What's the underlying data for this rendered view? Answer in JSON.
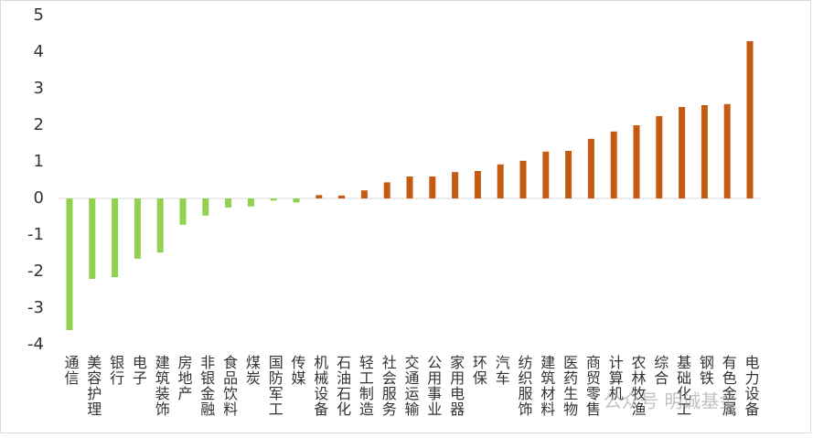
{
  "chart_data": {
    "type": "bar",
    "categories": [
      "通信",
      "美容护理",
      "银行",
      "电子",
      "建筑装饰",
      "房地产",
      "非银金融",
      "食品饮料",
      "煤炭",
      "国防军工",
      "传媒",
      "机械设备",
      "石油石化",
      "轻工制造",
      "社会服务",
      "交通运输",
      "公用事业",
      "家用电器",
      "环保",
      "汽车",
      "纺织服饰",
      "建筑材料",
      "医药生物",
      "商贸零售",
      "计算机",
      "农林牧渔",
      "综合",
      "基础化工",
      "钢铁",
      "有色金属",
      "电力设备"
    ],
    "values": [
      -3.6,
      -2.2,
      -2.15,
      -1.65,
      -1.48,
      -0.72,
      -0.47,
      -0.25,
      -0.22,
      -0.06,
      -0.11,
      0.09,
      0.08,
      0.22,
      0.44,
      0.6,
      0.6,
      0.72,
      0.75,
      0.93,
      1.03,
      1.28,
      1.3,
      1.63,
      1.83,
      2.0,
      2.25,
      2.5,
      2.55,
      2.58,
      4.3
    ],
    "positive_color": "#c55a11",
    "negative_color": "#92d050",
    "ylim": [
      -4,
      5
    ],
    "yticks": [
      -4,
      -3,
      -2,
      -1,
      0,
      1,
      2,
      3,
      4,
      5
    ],
    "watermark": "公众号 明诚基金"
  }
}
